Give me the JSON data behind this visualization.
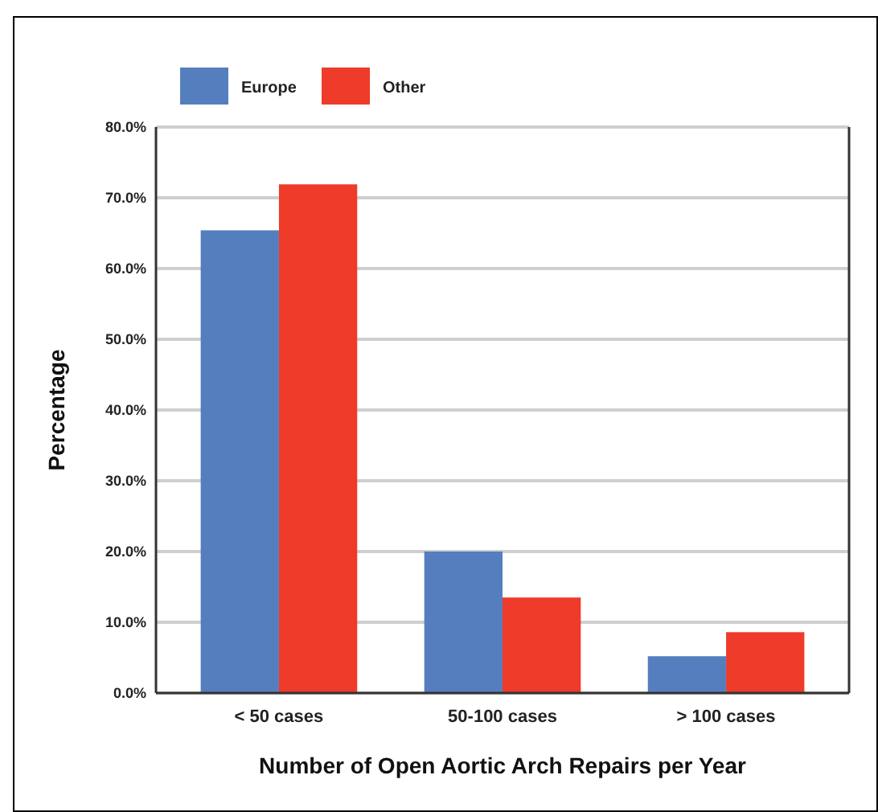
{
  "chart_data": {
    "type": "bar",
    "xlabel": "Number of Open Aortic Arch Repairs per Year",
    "ylabel": "Percentage",
    "categories": [
      "< 50 cases",
      "50-100 cases",
      "> 100 cases"
    ],
    "series": [
      {
        "name": "Europe",
        "color": "#557ebf",
        "values": [
          65.4,
          20.0,
          5.2
        ]
      },
      {
        "name": "Other",
        "color": "#ee3b2a",
        "values": [
          71.9,
          13.5,
          8.6
        ]
      }
    ],
    "ylim": [
      0,
      80
    ],
    "yticks": [
      {
        "value": 0,
        "label": "0.0%"
      },
      {
        "value": 10,
        "label": "10.0%"
      },
      {
        "value": 20,
        "label": "20.0%"
      },
      {
        "value": 30,
        "label": "30.0%"
      },
      {
        "value": 40,
        "label": "40.0%"
      },
      {
        "value": 50,
        "label": "50.0%"
      },
      {
        "value": 60,
        "label": "60.0%"
      },
      {
        "value": 70,
        "label": "70.0%"
      },
      {
        "value": 80,
        "label": "80.0%"
      }
    ],
    "grid": "y",
    "legend": "top left"
  }
}
